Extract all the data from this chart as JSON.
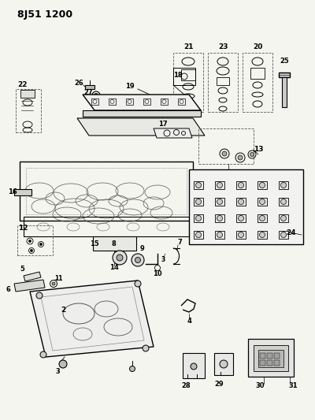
{
  "title": "8J51 1200",
  "bg_color": "#f5f5f0",
  "line_color": "#222222",
  "fig_width": 4.0,
  "fig_height": 5.33,
  "dpi": 100
}
